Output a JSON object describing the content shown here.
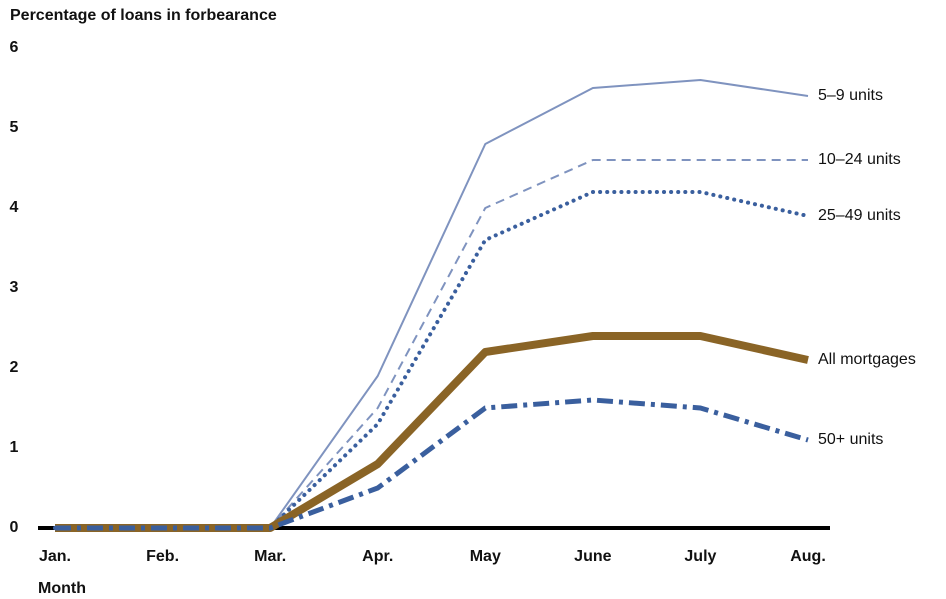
{
  "chart_data": {
    "type": "line",
    "y_label": "Percentage of loans in forbearance",
    "x_label": "Month",
    "categories": [
      "Jan.",
      "Feb.",
      "Mar.",
      "Apr.",
      "May",
      "June",
      "July",
      "Aug."
    ],
    "ylim": [
      0,
      6
    ],
    "yticks": [
      0,
      1,
      2,
      3,
      4,
      5,
      6
    ],
    "series": [
      {
        "name": "5–9 units",
        "color": "#7f93bf",
        "style": "solid",
        "values": [
          0,
          0,
          0,
          1.9,
          4.8,
          5.5,
          5.6,
          5.4
        ]
      },
      {
        "name": "10–24 units",
        "color": "#7f93bf",
        "style": "dashed",
        "values": [
          0,
          0,
          0,
          1.5,
          4.0,
          4.6,
          4.6,
          4.6
        ]
      },
      {
        "name": "25–49 units",
        "color": "#3a5f9e",
        "style": "dotted",
        "values": [
          0,
          0,
          0,
          1.3,
          3.6,
          4.2,
          4.2,
          3.9
        ]
      },
      {
        "name": "All mortgages",
        "color": "#8a6426",
        "style": "thick",
        "values": [
          0,
          0,
          0,
          0.8,
          2.2,
          2.4,
          2.4,
          2.1
        ]
      },
      {
        "name": "50+ units",
        "color": "#3a5f9e",
        "style": "dashdot",
        "values": [
          0,
          0,
          0,
          0.5,
          1.5,
          1.6,
          1.5,
          1.1
        ]
      }
    ]
  }
}
